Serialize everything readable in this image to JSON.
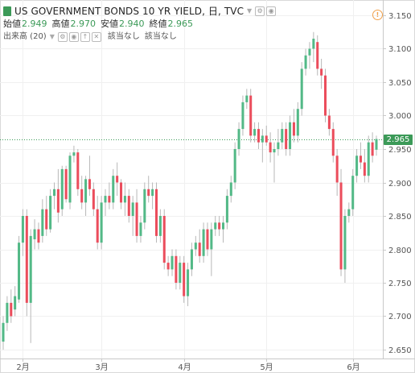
{
  "header": {
    "title": "US GOVERNMENT BONDS 10 YR YIELD, 日, TVC",
    "ohlc": [
      {
        "label": "始値",
        "value": "2.949"
      },
      {
        "label": "高値",
        "value": "2.970"
      },
      {
        "label": "安値",
        "value": "2.940"
      },
      {
        "label": "終値",
        "value": "2.965"
      }
    ],
    "volume_label": "出来高 (20)",
    "volume_na_1": "該当なし",
    "volume_na_2": "該当なし"
  },
  "colors": {
    "up": "#53b987",
    "down": "#eb4d5c",
    "accent": "#3c9a58"
  },
  "chart_data": {
    "type": "candlestick",
    "title": "US GOVERNMENT BONDS 10 YR YIELD, 日, TVC",
    "ylim": [
      2.625,
      3.16
    ],
    "yticks": [
      2.65,
      2.7,
      2.75,
      2.8,
      2.85,
      2.9,
      2.95,
      3.0,
      3.05,
      3.1,
      3.15
    ],
    "ytick_labels": [
      "2.650",
      "2.700",
      "2.750",
      "2.800",
      "2.850",
      "2.900",
      "2.950",
      "3.000",
      "3.050",
      "3.100",
      "3.150"
    ],
    "xtick_labels": [
      {
        "label": "2月",
        "index": 5
      },
      {
        "label": "3月",
        "index": 25
      },
      {
        "label": "4月",
        "index": 46
      },
      {
        "label": "5月",
        "index": 67
      },
      {
        "label": "6月",
        "index": 89
      }
    ],
    "last_price": 2.965,
    "last_price_label": "2.965",
    "candles": [
      [
        2.662,
        2.7,
        2.65,
        2.69
      ],
      [
        2.69,
        2.73,
        2.678,
        2.72
      ],
      [
        2.72,
        2.74,
        2.69,
        2.7
      ],
      [
        2.71,
        2.745,
        2.7,
        2.73
      ],
      [
        2.725,
        2.82,
        2.72,
        2.81
      ],
      [
        2.81,
        2.86,
        2.79,
        2.85
      ],
      [
        2.85,
        2.86,
        2.7,
        2.72
      ],
      [
        2.72,
        2.83,
        2.66,
        2.82
      ],
      [
        2.815,
        2.845,
        2.8,
        2.83
      ],
      [
        2.83,
        2.84,
        2.8,
        2.81
      ],
      [
        2.82,
        2.875,
        2.81,
        2.86
      ],
      [
        2.86,
        2.88,
        2.82,
        2.83
      ],
      [
        2.83,
        2.89,
        2.825,
        2.88
      ],
      [
        2.88,
        2.9,
        2.86,
        2.89
      ],
      [
        2.89,
        2.92,
        2.84,
        2.855
      ],
      [
        2.86,
        2.925,
        2.85,
        2.92
      ],
      [
        2.92,
        2.925,
        2.87,
        2.875
      ],
      [
        2.87,
        2.945,
        2.86,
        2.94
      ],
      [
        2.94,
        2.955,
        2.93,
        2.945
      ],
      [
        2.945,
        2.95,
        2.88,
        2.89
      ],
      [
        2.89,
        2.91,
        2.86,
        2.87
      ],
      [
        2.87,
        2.91,
        2.85,
        2.905
      ],
      [
        2.905,
        2.94,
        2.88,
        2.89
      ],
      [
        2.89,
        2.9,
        2.85,
        2.86
      ],
      [
        2.86,
        2.88,
        2.8,
        2.81
      ],
      [
        2.81,
        2.88,
        2.8,
        2.87
      ],
      [
        2.87,
        2.89,
        2.85,
        2.88
      ],
      [
        2.88,
        2.9,
        2.86,
        2.87
      ],
      [
        2.87,
        2.92,
        2.86,
        2.91
      ],
      [
        2.91,
        2.93,
        2.88,
        2.9
      ],
      [
        2.9,
        2.905,
        2.86,
        2.87
      ],
      [
        2.87,
        2.9,
        2.85,
        2.88
      ],
      [
        2.88,
        2.89,
        2.84,
        2.85
      ],
      [
        2.85,
        2.88,
        2.82,
        2.87
      ],
      [
        2.87,
        2.89,
        2.81,
        2.82
      ],
      [
        2.82,
        2.85,
        2.81,
        2.84
      ],
      [
        2.84,
        2.9,
        2.83,
        2.89
      ],
      [
        2.89,
        2.91,
        2.87,
        2.88
      ],
      [
        2.88,
        2.9,
        2.86,
        2.89
      ],
      [
        2.89,
        2.9,
        2.81,
        2.82
      ],
      [
        2.82,
        2.86,
        2.81,
        2.85
      ],
      [
        2.85,
        2.86,
        2.77,
        2.78
      ],
      [
        2.78,
        2.79,
        2.76,
        2.77
      ],
      [
        2.77,
        2.8,
        2.76,
        2.79
      ],
      [
        2.79,
        2.8,
        2.74,
        2.75
      ],
      [
        2.75,
        2.79,
        2.74,
        2.78
      ],
      [
        2.78,
        2.79,
        2.72,
        2.73
      ],
      [
        2.73,
        2.78,
        2.715,
        2.77
      ],
      [
        2.77,
        2.81,
        2.76,
        2.8
      ],
      [
        2.8,
        2.82,
        2.79,
        2.81
      ],
      [
        2.81,
        2.83,
        2.78,
        2.79
      ],
      [
        2.79,
        2.84,
        2.78,
        2.83
      ],
      [
        2.83,
        2.84,
        2.79,
        2.8
      ],
      [
        2.8,
        2.84,
        2.76,
        2.83
      ],
      [
        2.83,
        2.85,
        2.82,
        2.84
      ],
      [
        2.84,
        2.85,
        2.82,
        2.83
      ],
      [
        2.83,
        2.85,
        2.81,
        2.84
      ],
      [
        2.84,
        2.89,
        2.83,
        2.88
      ],
      [
        2.88,
        2.91,
        2.87,
        2.9
      ],
      [
        2.9,
        2.96,
        2.89,
        2.95
      ],
      [
        2.95,
        2.99,
        2.94,
        2.98
      ],
      [
        2.98,
        3.03,
        2.97,
        3.02
      ],
      [
        3.02,
        3.04,
        3.01,
        3.03
      ],
      [
        3.03,
        3.04,
        2.96,
        2.97
      ],
      [
        2.97,
        2.99,
        2.96,
        2.98
      ],
      [
        2.98,
        2.99,
        2.95,
        2.96
      ],
      [
        2.96,
        2.98,
        2.93,
        2.97
      ],
      [
        2.97,
        2.985,
        2.955,
        2.96
      ],
      [
        2.96,
        2.975,
        2.93,
        2.945
      ],
      [
        2.945,
        2.96,
        2.9,
        2.95
      ],
      [
        2.95,
        2.98,
        2.94,
        2.96
      ],
      [
        2.96,
        2.99,
        2.95,
        2.98
      ],
      [
        2.98,
        2.99,
        2.94,
        2.95
      ],
      [
        2.95,
        3.0,
        2.94,
        2.99
      ],
      [
        2.99,
        3.01,
        2.96,
        2.97
      ],
      [
        2.97,
        3.02,
        2.96,
        3.01
      ],
      [
        3.01,
        3.08,
        3.0,
        3.07
      ],
      [
        3.07,
        3.1,
        3.06,
        3.09
      ],
      [
        3.09,
        3.11,
        3.07,
        3.1
      ],
      [
        3.1,
        3.125,
        3.08,
        3.115
      ],
      [
        3.11,
        3.12,
        3.06,
        3.07
      ],
      [
        3.07,
        3.085,
        3.04,
        3.06
      ],
      [
        3.06,
        3.07,
        2.99,
        3.0
      ],
      [
        3.0,
        3.01,
        2.97,
        2.98
      ],
      [
        2.98,
        2.99,
        2.93,
        2.94
      ],
      [
        2.94,
        2.95,
        2.88,
        2.9
      ],
      [
        2.9,
        2.92,
        2.76,
        2.77
      ],
      [
        2.77,
        2.86,
        2.75,
        2.85
      ],
      [
        2.85,
        2.87,
        2.84,
        2.86
      ],
      [
        2.86,
        2.92,
        2.85,
        2.91
      ],
      [
        2.91,
        2.95,
        2.9,
        2.94
      ],
      [
        2.94,
        2.96,
        2.92,
        2.93
      ],
      [
        2.93,
        2.95,
        2.9,
        2.91
      ],
      [
        2.91,
        2.97,
        2.9,
        2.96
      ],
      [
        2.96,
        2.975,
        2.93,
        2.94
      ],
      [
        2.949,
        2.97,
        2.94,
        2.965
      ]
    ]
  }
}
